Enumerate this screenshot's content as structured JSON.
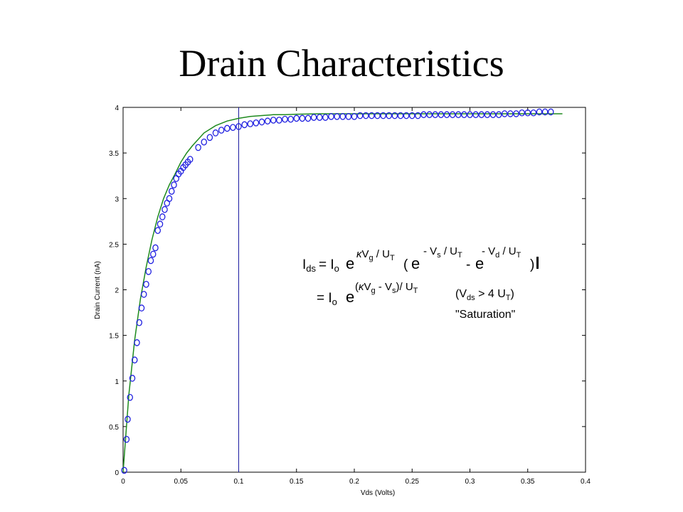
{
  "title": "Drain Characteristics",
  "chart_data": {
    "type": "scatter",
    "xlabel": "Vds (Volts)",
    "ylabel": "Drain Current (nA)",
    "xlim": [
      0,
      0.4
    ],
    "ylim": [
      0,
      4
    ],
    "xticks": [
      "0",
      "0.05",
      "0.1",
      "0.15",
      "0.2",
      "0.25",
      "0.3",
      "0.35",
      "0.4"
    ],
    "yticks": [
      "0",
      "0.5",
      "1",
      "1.5",
      "2",
      "2.5",
      "3",
      "3.5",
      "4"
    ],
    "vertical_line_x": 0.1,
    "grid": false,
    "colors": {
      "measured": "#1f1fe0",
      "model": "#1e8a1e",
      "marker_line": "#1a1aa0"
    },
    "series": [
      {
        "kind": "markers",
        "x": [
          0.001,
          0.003,
          0.004,
          0.006,
          0.008,
          0.01,
          0.012,
          0.014,
          0.016,
          0.018,
          0.02,
          0.022,
          0.024,
          0.026,
          0.028,
          0.03,
          0.032,
          0.034,
          0.036,
          0.038,
          0.04,
          0.042,
          0.044,
          0.046,
          0.048,
          0.05,
          0.052,
          0.054,
          0.056,
          0.058,
          0.065,
          0.07,
          0.075,
          0.08,
          0.085,
          0.09,
          0.095,
          0.1,
          0.105,
          0.11,
          0.115,
          0.12,
          0.125,
          0.13,
          0.135,
          0.14,
          0.145,
          0.15,
          0.155,
          0.16,
          0.165,
          0.17,
          0.175,
          0.18,
          0.185,
          0.19,
          0.195,
          0.2,
          0.205,
          0.21,
          0.215,
          0.22,
          0.225,
          0.23,
          0.235,
          0.24,
          0.245,
          0.25,
          0.255,
          0.26,
          0.265,
          0.27,
          0.275,
          0.28,
          0.285,
          0.29,
          0.295,
          0.3,
          0.305,
          0.31,
          0.315,
          0.32,
          0.325,
          0.33,
          0.335,
          0.34,
          0.345,
          0.35,
          0.355,
          0.36,
          0.365,
          0.37
        ],
        "y": [
          0.02,
          0.36,
          0.58,
          0.82,
          1.03,
          1.23,
          1.42,
          1.64,
          1.8,
          1.95,
          2.06,
          2.2,
          2.32,
          2.39,
          2.46,
          2.65,
          2.72,
          2.8,
          2.88,
          2.95,
          3.0,
          3.08,
          3.15,
          3.22,
          3.27,
          3.3,
          3.34,
          3.37,
          3.4,
          3.43,
          3.56,
          3.62,
          3.67,
          3.72,
          3.75,
          3.77,
          3.78,
          3.79,
          3.81,
          3.82,
          3.83,
          3.84,
          3.85,
          3.86,
          3.86,
          3.87,
          3.87,
          3.88,
          3.88,
          3.88,
          3.89,
          3.89,
          3.89,
          3.9,
          3.9,
          3.9,
          3.9,
          3.9,
          3.91,
          3.91,
          3.91,
          3.91,
          3.91,
          3.91,
          3.91,
          3.91,
          3.91,
          3.91,
          3.91,
          3.92,
          3.92,
          3.92,
          3.92,
          3.92,
          3.92,
          3.92,
          3.92,
          3.92,
          3.92,
          3.92,
          3.92,
          3.92,
          3.92,
          3.93,
          3.93,
          3.93,
          3.94,
          3.94,
          3.94,
          3.95,
          3.95,
          3.95
        ]
      },
      {
        "kind": "line",
        "x": [
          0,
          0.005,
          0.01,
          0.015,
          0.02,
          0.025,
          0.03,
          0.035,
          0.04,
          0.045,
          0.05,
          0.055,
          0.06,
          0.07,
          0.08,
          0.09,
          0.1,
          0.11,
          0.12,
          0.13,
          0.14,
          0.15,
          0.17,
          0.2,
          0.25,
          0.3,
          0.35,
          0.38
        ],
        "y": [
          0,
          0.85,
          1.45,
          1.9,
          2.25,
          2.55,
          2.8,
          3.0,
          3.15,
          3.27,
          3.4,
          3.5,
          3.58,
          3.72,
          3.8,
          3.85,
          3.88,
          3.9,
          3.91,
          3.92,
          3.92,
          3.925,
          3.93,
          3.93,
          3.93,
          3.93,
          3.93,
          3.93
        ]
      }
    ]
  },
  "equation": {
    "line1": {
      "lhs": "I",
      "lhs_sub": "ds",
      "eq_io": "= I",
      "io_sub": "o",
      "e1": "e",
      "exp1_kappa": "κ",
      "exp1_v": "V",
      "exp1_vsub": "g",
      "exp1_rest": " / U",
      "exp1_tsub": "T",
      "paren_open": "(",
      "e2": "e",
      "exp2": "- V",
      "exp2_sub": "s",
      "exp2_rest": " / U",
      "exp2_tsub": "T",
      "minus": "-",
      "e3": "e",
      "exp3": "- V",
      "exp3_sub": "d",
      "exp3_rest": " / U",
      "exp3_tsub": "T",
      "paren_close": ")"
    },
    "line2": {
      "eq_io": "= I",
      "io_sub": "o",
      "e": "e",
      "exp_open": "(",
      "exp_kappa": "κ",
      "exp_v": "V",
      "exp_vsub": "g",
      "exp_mid": " - V",
      "exp_ssub": "s",
      "exp_rest": ")/ U",
      "exp_tsub": "T",
      "cond_open": "(V",
      "cond_sub": "ds",
      "cond_mid": " > 4 U",
      "cond_tsub": "T",
      "cond_close": ")"
    },
    "saturation_label": "\"Saturation\""
  }
}
